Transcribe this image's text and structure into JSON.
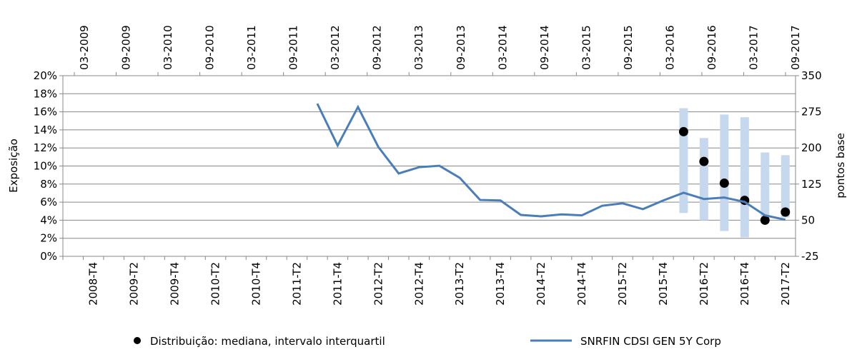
{
  "chart_data": {
    "type": "line",
    "categories": [
      null,
      "2008-T4",
      null,
      "2009-T2",
      null,
      "2009-T4",
      null,
      "2010-T2",
      null,
      "2010-T4",
      null,
      "2011-T2",
      null,
      "2011-T4",
      null,
      "2012-T2",
      null,
      "2012-T4",
      null,
      "2013-T2",
      null,
      "2013-T4",
      null,
      "2014-T2",
      null,
      "2014-T4",
      null,
      "2015-T2",
      null,
      "2015-T4",
      null,
      "2016-T2",
      null,
      "2016-T4",
      null,
      "2017-T2"
    ],
    "top_categories": [
      "03-2009",
      "09-2009",
      "03-2010",
      "09-2010",
      "03-2011",
      "09-2011",
      "03-2012",
      "09-2012",
      "03-2013",
      "09-2013",
      "03-2014",
      "09-2014",
      "03-2015",
      "09-2015",
      "03-2016",
      "09-2016",
      "03-2017",
      "09-2017"
    ],
    "ylabel": "Exposição",
    "y2label": "pontos base",
    "ylim": [
      0,
      20
    ],
    "yticks": [
      {
        "value": 0,
        "label": "0%"
      },
      {
        "value": 2,
        "label": "2%"
      },
      {
        "value": 4,
        "label": "4%"
      },
      {
        "value": 6,
        "label": "6%"
      },
      {
        "value": 8,
        "label": "8%"
      },
      {
        "value": 10,
        "label": "10%"
      },
      {
        "value": 12,
        "label": "12%"
      },
      {
        "value": 14,
        "label": "14%"
      },
      {
        "value": 16,
        "label": "16%"
      },
      {
        "value": 18,
        "label": "18%"
      },
      {
        "value": 20,
        "label": "20%"
      }
    ],
    "y2lim": [
      -25,
      350
    ],
    "y2ticks": [
      -25,
      50,
      125,
      200,
      275,
      350
    ],
    "grid": true,
    "series": [
      {
        "name": "Distribuição: mediana, intervalo interquartil",
        "color": "#000000",
        "range_color": "#c6d8ed",
        "values": [
          null,
          null,
          null,
          null,
          null,
          null,
          null,
          null,
          null,
          null,
          null,
          null,
          null,
          null,
          null,
          null,
          null,
          null,
          null,
          null,
          null,
          null,
          null,
          null,
          null,
          null,
          null,
          null,
          null,
          null,
          13.8,
          10.5,
          8.1,
          6.2,
          4.0,
          4.9
        ],
        "q1": [
          null,
          null,
          null,
          null,
          null,
          null,
          null,
          null,
          null,
          null,
          null,
          null,
          null,
          null,
          null,
          null,
          null,
          null,
          null,
          null,
          null,
          null,
          null,
          null,
          null,
          null,
          null,
          null,
          null,
          null,
          4.8,
          4.0,
          2.8,
          2.1,
          4.4,
          4.3
        ],
        "q3": [
          null,
          null,
          null,
          null,
          null,
          null,
          null,
          null,
          null,
          null,
          null,
          null,
          null,
          null,
          null,
          null,
          null,
          null,
          null,
          null,
          null,
          null,
          null,
          null,
          null,
          null,
          null,
          null,
          null,
          null,
          16.4,
          13.1,
          15.7,
          15.4,
          11.5,
          11.2
        ]
      },
      {
        "name": "SNRFIN CDSI GEN 5Y Corp",
        "color": "#4a7ebb",
        "axis": "y2",
        "values": [
          null,
          null,
          null,
          null,
          null,
          null,
          null,
          null,
          null,
          null,
          null,
          null,
          292,
          205,
          285,
          202,
          147,
          160,
          163,
          138,
          92,
          91,
          61,
          58,
          62,
          60,
          80,
          85,
          73,
          91,
          107,
          94,
          97,
          88,
          60,
          51
        ]
      }
    ]
  }
}
